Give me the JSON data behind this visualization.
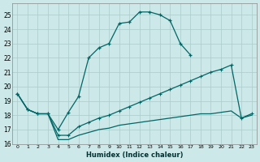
{
  "xlabel": "Humidex (Indice chaleur)",
  "bg_color": "#cce8e8",
  "grid_color": "#aacccc",
  "line_color": "#006666",
  "xlim": [
    -0.5,
    23.5
  ],
  "ylim": [
    16,
    25.8
  ],
  "xticks": [
    0,
    1,
    2,
    3,
    4,
    5,
    6,
    7,
    8,
    9,
    10,
    11,
    12,
    13,
    14,
    15,
    16,
    17,
    18,
    19,
    20,
    21,
    22,
    23
  ],
  "yticks": [
    16,
    17,
    18,
    19,
    20,
    21,
    22,
    23,
    24,
    25
  ],
  "series1_x": [
    0,
    1,
    2,
    3,
    4,
    5,
    6,
    7,
    8,
    9,
    10,
    11,
    12,
    13,
    14,
    15,
    16,
    17
  ],
  "series1_y": [
    19.5,
    18.4,
    18.1,
    18.1,
    17.0,
    18.2,
    19.3,
    22.0,
    22.7,
    23.0,
    24.4,
    24.5,
    25.2,
    25.2,
    25.0,
    24.6,
    23.0,
    22.2
  ],
  "series2_x": [
    0,
    1,
    2,
    3,
    4,
    5,
    6,
    7,
    8,
    9,
    10,
    11,
    12,
    13,
    14,
    15,
    16,
    17,
    18,
    19,
    20,
    21,
    22,
    23
  ],
  "series2_y": [
    19.5,
    18.4,
    18.1,
    18.1,
    16.6,
    16.6,
    17.2,
    17.5,
    17.8,
    18.0,
    18.3,
    18.6,
    18.9,
    19.2,
    19.5,
    19.8,
    20.1,
    20.4,
    20.7,
    21.0,
    21.2,
    21.5,
    17.8,
    18.1
  ],
  "series3_x": [
    0,
    1,
    2,
    3,
    4,
    5,
    6,
    7,
    8,
    9,
    10,
    11,
    12,
    13,
    14,
    15,
    16,
    17,
    18,
    19,
    20,
    21,
    22,
    23
  ],
  "series3_y": [
    19.5,
    18.4,
    18.1,
    18.1,
    16.3,
    16.3,
    16.6,
    16.8,
    17.0,
    17.1,
    17.3,
    17.4,
    17.5,
    17.6,
    17.7,
    17.8,
    17.9,
    18.0,
    18.1,
    18.1,
    18.2,
    18.3,
    17.8,
    18.0
  ]
}
